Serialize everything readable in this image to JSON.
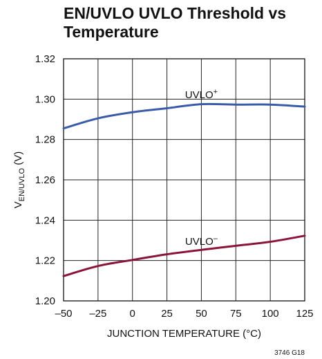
{
  "chart_data": {
    "type": "line",
    "title": "EN/UVLO UVLO Threshold vs Temperature",
    "xlabel": "JUNCTION TEMPERATURE (°C)",
    "ylabel": {
      "main": "V",
      "sub": "EN/UVLO",
      "unit": " (V)"
    },
    "xlim": [
      -50,
      125
    ],
    "ylim": [
      1.2,
      1.32
    ],
    "x_ticks": [
      "–50",
      "–25",
      "0",
      "25",
      "50",
      "75",
      "100",
      "125"
    ],
    "y_ticks": [
      "1.20",
      "1.22",
      "1.24",
      "1.26",
      "1.28",
      "1.30",
      "1.32"
    ],
    "grid": true,
    "series": [
      {
        "name": "UVLO+",
        "label": {
          "text": "UVLO",
          "sup": "+"
        },
        "color": "#3a5ba8",
        "x": [
          -50,
          -25,
          0,
          25,
          50,
          75,
          100,
          125
        ],
        "y": [
          1.2855,
          1.2905,
          1.2935,
          1.2955,
          1.2975,
          1.2973,
          1.2973,
          1.2963
        ]
      },
      {
        "name": "UVLO−",
        "label": {
          "text": "UVLO",
          "sup": "–"
        },
        "color": "#8b1538",
        "x": [
          -50,
          -25,
          0,
          25,
          50,
          75,
          100,
          125
        ],
        "y": [
          1.2123,
          1.2173,
          1.2203,
          1.2231,
          1.2253,
          1.2273,
          1.2293,
          1.2323
        ]
      }
    ],
    "figure_code": "3746 G18"
  }
}
